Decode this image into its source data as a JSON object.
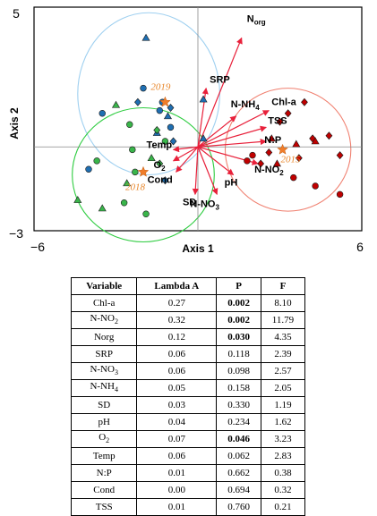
{
  "chart_data": {
    "type": "scatter",
    "subtype": "biplot",
    "xlabel": "Axis 1",
    "ylabel": "Axis 2",
    "xlim": [
      -6,
      6
    ],
    "ylim": [
      -3,
      5
    ],
    "x_tick_labels": [
      "−6",
      "6"
    ],
    "y_tick_labels": [
      "−3",
      "5"
    ],
    "grid": false,
    "groups": [
      {
        "name": "2019",
        "color": "#1f6fb2",
        "ellipse_color": "#9fd0f0",
        "centroid": [
          -1.2,
          1.6
        ],
        "ellipse_center": [
          -1.8,
          1.9
        ],
        "ellipse_radius": [
          2.6,
          2.9
        ]
      },
      {
        "name": "2018",
        "color": "#39b54a",
        "ellipse_color": "#2ecc40",
        "centroid": [
          -2.0,
          -0.9
        ],
        "ellipse_center": [
          -2.0,
          -1.0
        ],
        "ellipse_radius": [
          2.6,
          2.4
        ]
      },
      {
        "name": "2015",
        "color": "#c00000",
        "ellipse_color": "#f08070",
        "centroid": [
          3.1,
          -0.1
        ],
        "ellipse_center": [
          3.3,
          -0.1
        ],
        "ellipse_radius": [
          2.3,
          2.2
        ]
      }
    ],
    "points": [
      {
        "group": "2019",
        "shape": "triangle",
        "x": -1.9,
        "y": 3.9
      },
      {
        "group": "2019",
        "shape": "circle",
        "x": -2.0,
        "y": 2.1
      },
      {
        "group": "2019",
        "shape": "diamond",
        "x": -2.2,
        "y": 1.6
      },
      {
        "group": "2019",
        "shape": "triangle",
        "x": 0.2,
        "y": 1.7
      },
      {
        "group": "2019",
        "shape": "circle",
        "x": -1.4,
        "y": 1.3
      },
      {
        "group": "2019",
        "shape": "diamond",
        "x": -1.0,
        "y": 1.4
      },
      {
        "group": "2019",
        "shape": "circle",
        "x": -1.3,
        "y": 1.6
      },
      {
        "group": "2019",
        "shape": "triangle",
        "x": -1.1,
        "y": 1.1
      },
      {
        "group": "2019",
        "shape": "circle",
        "x": -3.5,
        "y": 1.2
      },
      {
        "group": "2019",
        "shape": "triangle",
        "x": -1.5,
        "y": 0.5
      },
      {
        "group": "2019",
        "shape": "circle",
        "x": -1.0,
        "y": 0.7
      },
      {
        "group": "2019",
        "shape": "diamond",
        "x": -0.9,
        "y": 0.2
      },
      {
        "group": "2019",
        "shape": "circle",
        "x": -4.0,
        "y": -0.8
      },
      {
        "group": "2019",
        "shape": "diamond",
        "x": -1.2,
        "y": -1.2
      },
      {
        "group": "2019",
        "shape": "triangle",
        "x": 0.2,
        "y": 0.3
      },
      {
        "group": "2018",
        "shape": "triangle",
        "x": -3.0,
        "y": 1.5
      },
      {
        "group": "2018",
        "shape": "circle",
        "x": -2.5,
        "y": 0.8
      },
      {
        "group": "2018",
        "shape": "diamond",
        "x": -1.5,
        "y": 0.6
      },
      {
        "group": "2018",
        "shape": "circle",
        "x": -1.2,
        "y": 0.2
      },
      {
        "group": "2018",
        "shape": "circle",
        "x": -2.4,
        "y": -0.1
      },
      {
        "group": "2018",
        "shape": "triangle",
        "x": -1.7,
        "y": -0.4
      },
      {
        "group": "2018",
        "shape": "diamond",
        "x": -1.4,
        "y": -0.6
      },
      {
        "group": "2018",
        "shape": "circle",
        "x": -3.7,
        "y": -0.5
      },
      {
        "group": "2018",
        "shape": "circle",
        "x": -2.3,
        "y": -0.9
      },
      {
        "group": "2018",
        "shape": "triangle",
        "x": -3.5,
        "y": -2.2
      },
      {
        "group": "2018",
        "shape": "triangle",
        "x": -4.4,
        "y": -1.9
      },
      {
        "group": "2018",
        "shape": "circle",
        "x": -2.7,
        "y": -2.0
      },
      {
        "group": "2018",
        "shape": "circle",
        "x": -1.9,
        "y": -2.4
      },
      {
        "group": "2018",
        "shape": "triangle",
        "x": -2.6,
        "y": -1.3
      },
      {
        "group": "2015",
        "shape": "diamond",
        "x": 3.9,
        "y": 1.6
      },
      {
        "group": "2015",
        "shape": "diamond",
        "x": 3.3,
        "y": 1.2
      },
      {
        "group": "2015",
        "shape": "diamond",
        "x": 3.0,
        "y": 0.9
      },
      {
        "group": "2015",
        "shape": "diamond",
        "x": 4.2,
        "y": 0.3
      },
      {
        "group": "2015",
        "shape": "triangle",
        "x": 3.6,
        "y": 0.1
      },
      {
        "group": "2015",
        "shape": "triangle",
        "x": 4.3,
        "y": 0.2
      },
      {
        "group": "2015",
        "shape": "circle",
        "x": 2.0,
        "y": -0.3
      },
      {
        "group": "2015",
        "shape": "diamond",
        "x": 2.6,
        "y": -0.2
      },
      {
        "group": "2015",
        "shape": "diamond",
        "x": 3.7,
        "y": -0.4
      },
      {
        "group": "2015",
        "shape": "circle",
        "x": 1.8,
        "y": -0.5
      },
      {
        "group": "2015",
        "shape": "triangle",
        "x": 2.9,
        "y": -0.6
      },
      {
        "group": "2015",
        "shape": "diamond",
        "x": 5.2,
        "y": -0.3
      },
      {
        "group": "2015",
        "shape": "diamond",
        "x": 4.8,
        "y": 0.4
      },
      {
        "group": "2015",
        "shape": "circle",
        "x": 3.5,
        "y": -1.1
      },
      {
        "group": "2015",
        "shape": "circle",
        "x": 4.3,
        "y": -1.4
      },
      {
        "group": "2015",
        "shape": "circle",
        "x": 5.2,
        "y": -1.7
      },
      {
        "group": "2015",
        "shape": "triangle",
        "x": 2.7,
        "y": 0.3
      },
      {
        "group": "2015",
        "shape": "diamond",
        "x": 2.3,
        "y": -0.6
      }
    ],
    "vectors": [
      {
        "label": "N",
        "label_sub": "org",
        "x": 1.6,
        "y": 3.9
      },
      {
        "label": "SRP",
        "label_sub": "",
        "x": 0.3,
        "y": 2.1
      },
      {
        "label": "N-NH",
        "label_sub": "4",
        "x": 1.4,
        "y": 1.1
      },
      {
        "label": "Chl-a",
        "label_sub": "",
        "x": 2.6,
        "y": 1.3
      },
      {
        "label": "TSS",
        "label_sub": "",
        "x": 2.5,
        "y": 0.7
      },
      {
        "label": "N:P",
        "label_sub": "",
        "x": 2.5,
        "y": 0.2
      },
      {
        "label": "N-NO",
        "label_sub": "2",
        "x": 2.2,
        "y": -0.6
      },
      {
        "label": "pH",
        "label_sub": "",
        "x": 1.3,
        "y": -1.0
      },
      {
        "label": "N-NO",
        "label_sub": "3",
        "x": 0.7,
        "y": -1.7
      },
      {
        "label": "SD",
        "label_sub": "",
        "x": -0.1,
        "y": -1.7
      },
      {
        "label": "Cond",
        "label_sub": "",
        "x": -0.8,
        "y": -0.9
      },
      {
        "label": "O",
        "label_sub": "2",
        "x": -0.9,
        "y": -0.5
      },
      {
        "label": "Temp",
        "label_sub": "",
        "x": -0.9,
        "y": -0.1
      }
    ]
  },
  "table": {
    "headers": [
      "Variable",
      "Lambda A",
      "P",
      "F"
    ],
    "rows": [
      {
        "variable": "Chl-a",
        "sub": "",
        "lambda": "0.27",
        "p": "0.002",
        "p_bold": true,
        "f": "8.10"
      },
      {
        "variable": "N-NO",
        "sub": "2",
        "lambda": "0.32",
        "p": "0.002",
        "p_bold": true,
        "f": "11.79"
      },
      {
        "variable": "Norg",
        "sub": "",
        "lambda": "0.12",
        "p": "0.030",
        "p_bold": true,
        "f": "4.35"
      },
      {
        "variable": "SRP",
        "sub": "",
        "lambda": "0.06",
        "p": "0.118",
        "p_bold": false,
        "f": "2.39"
      },
      {
        "variable": "N-NO",
        "sub": "3",
        "lambda": "0.06",
        "p": "0.098",
        "p_bold": false,
        "f": "2.57"
      },
      {
        "variable": "N-NH",
        "sub": "4",
        "lambda": "0.05",
        "p": "0.158",
        "p_bold": false,
        "f": "2.05"
      },
      {
        "variable": "SD",
        "sub": "",
        "lambda": "0.03",
        "p": "0.330",
        "p_bold": false,
        "f": "1.19"
      },
      {
        "variable": "pH",
        "sub": "",
        "lambda": "0.04",
        "p": "0.234",
        "p_bold": false,
        "f": "1.62"
      },
      {
        "variable": "O",
        "sub": "2",
        "lambda": "0.07",
        "p": "0.046",
        "p_bold": true,
        "f": "3.23"
      },
      {
        "variable": "Temp",
        "sub": "",
        "lambda": "0.06",
        "p": "0.062",
        "p_bold": false,
        "f": "2.83"
      },
      {
        "variable": "N:P",
        "sub": "",
        "lambda": "0.01",
        "p": "0.662",
        "p_bold": false,
        "f": "0.38"
      },
      {
        "variable": "Cond",
        "sub": "",
        "lambda": "0.00",
        "p": "0.694",
        "p_bold": false,
        "f": "0.32"
      },
      {
        "variable": "TSS",
        "sub": "",
        "lambda": "0.01",
        "p": "0.760",
        "p_bold": false,
        "f": "0.21"
      }
    ]
  }
}
